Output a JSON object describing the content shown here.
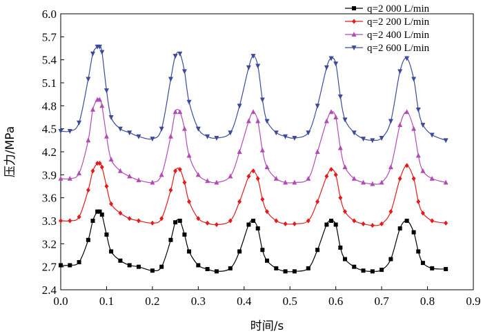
{
  "chart_data": {
    "type": "line",
    "xlabel": "时间/s",
    "ylabel": "压力/MPa",
    "xlim": [
      0.0,
      0.9
    ],
    "ylim": [
      2.4,
      6.0
    ],
    "xticks": [
      "0.0",
      "0.1",
      "0.2",
      "0.3",
      "0.4",
      "0.5",
      "0.6",
      "0.7",
      "0.8",
      "0.9"
    ],
    "yticks": [
      "2.4",
      "2.7",
      "3.2",
      "3.3",
      "3.6",
      "3.9",
      "4.2",
      "4.5",
      "4.8",
      "5.1",
      "5.4",
      "5.7",
      "6.0"
    ],
    "grid": false,
    "legend_position": "top-right",
    "x": [
      0.0,
      0.02,
      0.04,
      0.06,
      0.07,
      0.08,
      0.085,
      0.09,
      0.1,
      0.11,
      0.13,
      0.15,
      0.17,
      0.2,
      0.22,
      0.24,
      0.25,
      0.26,
      0.27,
      0.28,
      0.3,
      0.32,
      0.34,
      0.37,
      0.39,
      0.41,
      0.42,
      0.43,
      0.44,
      0.45,
      0.47,
      0.49,
      0.51,
      0.54,
      0.56,
      0.58,
      0.59,
      0.6,
      0.61,
      0.62,
      0.64,
      0.66,
      0.68,
      0.7,
      0.72,
      0.74,
      0.755,
      0.77,
      0.78,
      0.79,
      0.81,
      0.84
    ],
    "series": [
      {
        "name": "q=2 000 L/min",
        "color": "#000000",
        "marker": "square",
        "values": [
          2.72,
          2.72,
          2.76,
          3.05,
          3.3,
          3.42,
          3.42,
          3.38,
          3.12,
          2.9,
          2.78,
          2.72,
          2.7,
          2.65,
          2.7,
          3.05,
          3.28,
          3.3,
          3.12,
          2.9,
          2.72,
          2.67,
          2.64,
          2.68,
          2.9,
          3.25,
          3.3,
          3.2,
          2.92,
          2.78,
          2.68,
          2.64,
          2.64,
          2.68,
          2.92,
          3.25,
          3.3,
          3.25,
          2.95,
          2.8,
          2.7,
          2.65,
          2.64,
          2.66,
          2.8,
          3.2,
          3.3,
          3.15,
          2.9,
          2.75,
          2.68,
          2.67
        ]
      },
      {
        "name": "q=2 200 L/min",
        "color": "#e41a1c",
        "marker": "diamond",
        "values": [
          3.3,
          3.3,
          3.35,
          3.7,
          3.95,
          4.05,
          4.05,
          4.0,
          3.75,
          3.52,
          3.4,
          3.33,
          3.3,
          3.27,
          3.33,
          3.7,
          3.95,
          3.97,
          3.8,
          3.55,
          3.33,
          3.27,
          3.25,
          3.3,
          3.55,
          3.88,
          3.95,
          3.85,
          3.58,
          3.42,
          3.3,
          3.26,
          3.26,
          3.3,
          3.55,
          3.88,
          3.97,
          3.9,
          3.6,
          3.42,
          3.3,
          3.26,
          3.24,
          3.26,
          3.42,
          3.85,
          4.02,
          3.85,
          3.55,
          3.4,
          3.3,
          3.27
        ]
      },
      {
        "name": "q=2 400 L/min",
        "color": "#b34bb5",
        "marker": "triangle-up",
        "values": [
          3.85,
          3.85,
          3.92,
          4.35,
          4.75,
          4.88,
          4.88,
          4.8,
          4.4,
          4.1,
          3.95,
          3.88,
          3.83,
          3.8,
          3.9,
          4.4,
          4.72,
          4.72,
          4.5,
          4.15,
          3.9,
          3.82,
          3.8,
          3.88,
          4.2,
          4.6,
          4.72,
          4.6,
          4.22,
          4.0,
          3.85,
          3.8,
          3.8,
          3.85,
          4.2,
          4.6,
          4.72,
          4.65,
          4.25,
          4.0,
          3.85,
          3.8,
          3.78,
          3.8,
          4.0,
          4.55,
          4.72,
          4.5,
          4.15,
          3.95,
          3.85,
          3.8
        ]
      },
      {
        "name": "q=2 600 L/min",
        "color": "#3b4b9b",
        "marker": "triangle-down",
        "values": [
          4.47,
          4.47,
          4.58,
          5.15,
          5.48,
          5.57,
          5.57,
          5.5,
          5.0,
          4.65,
          4.5,
          4.45,
          4.4,
          4.37,
          4.5,
          5.15,
          5.45,
          5.48,
          5.25,
          4.85,
          4.5,
          4.4,
          4.38,
          4.45,
          4.8,
          5.3,
          5.45,
          5.32,
          4.88,
          4.6,
          4.45,
          4.4,
          4.38,
          4.45,
          4.8,
          5.3,
          5.42,
          5.35,
          4.92,
          4.62,
          4.45,
          4.37,
          4.35,
          4.38,
          4.6,
          5.25,
          5.42,
          5.15,
          4.75,
          4.55,
          4.42,
          4.35
        ]
      }
    ]
  }
}
